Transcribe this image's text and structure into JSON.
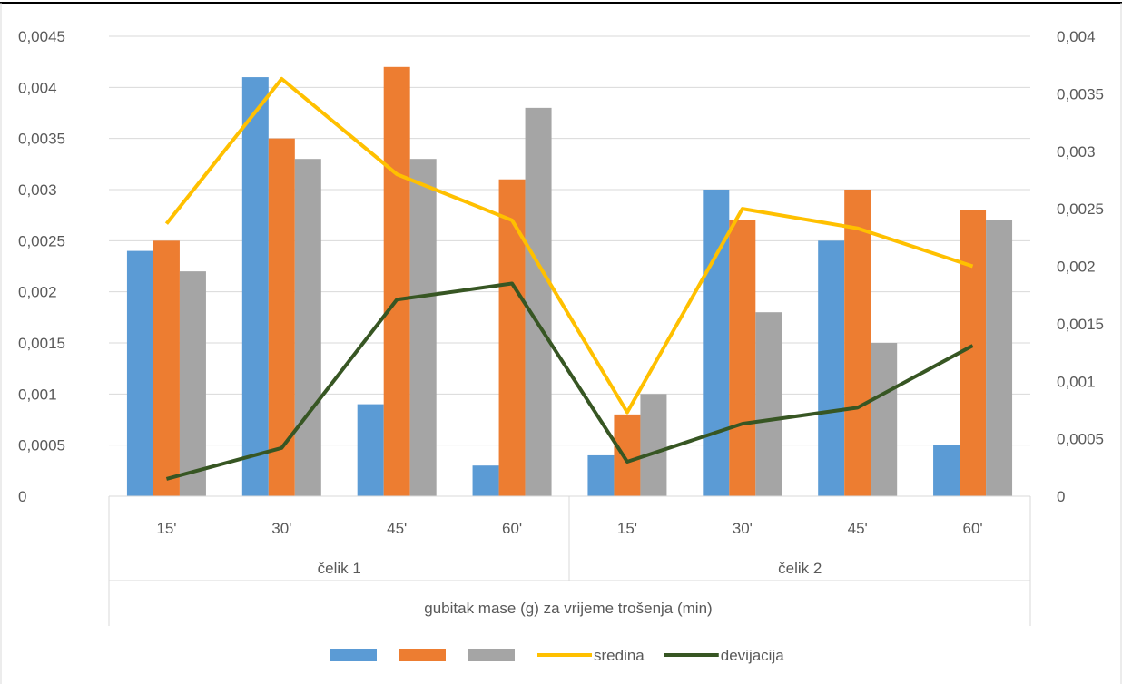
{
  "chart_data": {
    "type": "bar",
    "groups": [
      "čelik 1",
      "čelik 2"
    ],
    "categories": [
      "15'",
      "30'",
      "45'",
      "60'",
      "15'",
      "30'",
      "45'",
      "60'"
    ],
    "xlabel": "gubitak mase (g) za vrijeme trošenja (min)",
    "y_left": {
      "ylim": [
        0,
        0.0045
      ],
      "ticks": [
        "0",
        "0,0005",
        "0,001",
        "0,0015",
        "0,002",
        "0,0025",
        "0,003",
        "0,0035",
        "0,004",
        "0,0045"
      ]
    },
    "y_right": {
      "ylim": [
        0,
        0.004
      ],
      "ticks": [
        "0",
        "0,0005",
        "0,001",
        "0,0015",
        "0,002",
        "0,0025",
        "0,003",
        "0,0035",
        "0,004"
      ]
    },
    "grid": true,
    "legend_position": "bottom",
    "series": [
      {
        "type": "bar",
        "axis": "left",
        "color": "#5B9BD5",
        "values": [
          0.0024,
          0.0041,
          0.0009,
          0.0003,
          0.0004,
          0.003,
          0.0025,
          0.0005
        ]
      },
      {
        "type": "bar",
        "axis": "left",
        "color": "#ED7D31",
        "values": [
          0.0025,
          0.0035,
          0.0042,
          0.0031,
          0.0008,
          0.0027,
          0.003,
          0.0028
        ]
      },
      {
        "type": "bar",
        "axis": "left",
        "color": "#A5A5A5",
        "values": [
          0.0022,
          0.0033,
          0.0033,
          0.0038,
          0.001,
          0.0018,
          0.0015,
          0.0027
        ]
      },
      {
        "type": "line",
        "axis": "right",
        "name": "sredina",
        "color": "#FFC000",
        "values": [
          0.00237,
          0.00363,
          0.0028,
          0.0024,
          0.00073,
          0.0025,
          0.00233,
          0.002
        ]
      },
      {
        "type": "line",
        "axis": "right",
        "name": "devijacija",
        "color": "#375623",
        "values": [
          0.00015,
          0.00042,
          0.00171,
          0.00185,
          0.0003,
          0.00063,
          0.00077,
          0.00131
        ]
      }
    ]
  }
}
